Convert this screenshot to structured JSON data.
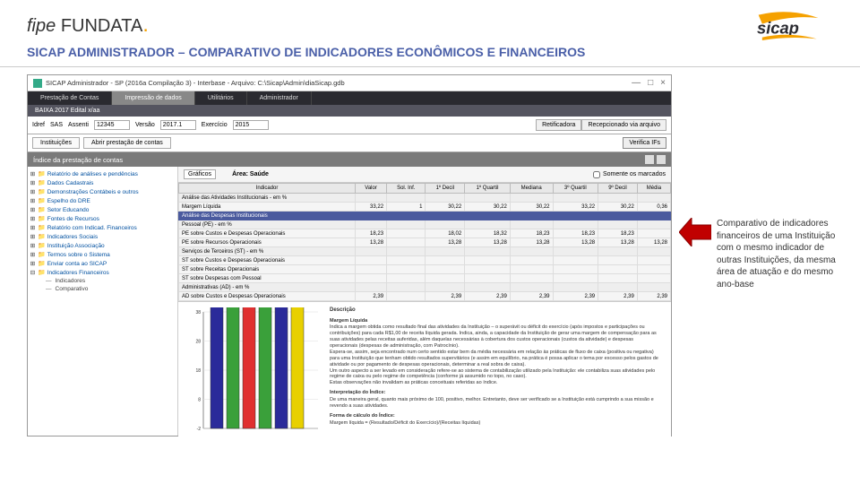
{
  "header": {
    "logo_fipe": "fipe",
    "logo_fundata": "FUNDATA",
    "logo_right": "sicap"
  },
  "page_title": "SICAP ADMINISTRADOR – COMPARATIVO DE INDICADORES ECONÔMICOS E FINANCEIROS",
  "window": {
    "title": "SICAP Administrador - SP (2016a Compilação 3) - Interbase - Arquivo: C:\\Sicap\\Admin\\diaSicap.gdb",
    "minimize": "—",
    "maximize": "□",
    "close": "×"
  },
  "menubar": {
    "items": [
      "Prestação de Contas",
      "Impressão de dados",
      "Utilitários",
      "Administrador"
    ]
  },
  "toolbar1": "BAIXA 2017 Edital x/aa",
  "toolbar2": {
    "idref": "Idref",
    "sas": "SAS",
    "assent": "Assenti",
    "assent_val": "12345",
    "versao": "Versão",
    "versao_val": "2017.1",
    "exercicio": "Exercício",
    "exercicio_val": "2015",
    "tab_retificador": "Retificadora",
    "tab_recepciona": "Recepcionado via arquivo"
  },
  "toolbar3": {
    "tab1": "Instituições",
    "tab2": "Abrir prestação de contas",
    "verifica": "Verifica IFs"
  },
  "section": {
    "title": "Índice da prestação de contas",
    "somente": "Somente os marcados"
  },
  "subtabs": {
    "tab1": "Gráficos",
    "area": "Área: Saúde"
  },
  "tree": [
    "Relatório de análises e pendências",
    "Dados Cadastrais",
    "Demonstrações Contábeis e outros",
    "Espelho do DRE",
    "Setor Educando",
    "Fontes de Recursos",
    "Relatório com Indicad. Financeiros",
    "Indicadores Sociais",
    "Instituição Associação",
    "Termos sobre o Sistema",
    "Enviar conta ao SICAP",
    "Indicadores Financeiros"
  ],
  "tree_sub": [
    "Indicadores",
    "Comparativo"
  ],
  "table": {
    "headers": [
      "Indicador",
      "Valor",
      "Sol. Inf.",
      "1º Decil",
      "1º Quartil",
      "Mediana",
      "3º Quartil",
      "9º Decil",
      "Média"
    ],
    "rows": [
      {
        "label": "Análise das Atividades Institucionais - em %",
        "vals": [
          "",
          "",
          "",
          "",
          "",
          "",
          "",
          ""
        ],
        "cls": "row-grey"
      },
      {
        "label": "Margem Líquida",
        "vals": [
          "33,22",
          "1",
          "30,22",
          "30,22",
          "30,22",
          "33,22",
          "30,22",
          "0,36"
        ],
        "cls": ""
      },
      {
        "label": "Análise das Despesas Institucionais",
        "vals": [
          "",
          "",
          "",
          "",
          "",
          "",
          "",
          ""
        ],
        "cls": "row-hl"
      },
      {
        "label": "Pessoal (PE) - em %",
        "vals": [
          "",
          "",
          "",
          "",
          "",
          "",
          "",
          ""
        ],
        "cls": "row-grey"
      },
      {
        "label": "PE sobre Custos e Despesas Operacionais",
        "vals": [
          "18,23",
          "",
          "18,02",
          "18,32",
          "18,23",
          "18,23",
          "18,23",
          ""
        ],
        "cls": ""
      },
      {
        "label": "PE sobre Recursos Operacionais",
        "vals": [
          "13,28",
          "",
          "13,28",
          "13,28",
          "13,28",
          "13,28",
          "13,28",
          "13,28"
        ],
        "cls": ""
      },
      {
        "label": "Serviços de Terceiros (ST) - em %",
        "vals": [
          "",
          "",
          "",
          "",
          "",
          "",
          "",
          ""
        ],
        "cls": "row-grey"
      },
      {
        "label": "ST sobre Custos e Despesas Operacionais",
        "vals": [
          "",
          "",
          "",
          "",
          "",
          "",
          "",
          ""
        ],
        "cls": ""
      },
      {
        "label": "ST sobre Receitas Operacionais",
        "vals": [
          "",
          "",
          "",
          "",
          "",
          "",
          "",
          ""
        ],
        "cls": ""
      },
      {
        "label": "ST sobre Despesas com Pessoal",
        "vals": [
          "",
          "",
          "",
          "",
          "",
          "",
          "",
          ""
        ],
        "cls": ""
      },
      {
        "label": "Administrativas (AD) - em %",
        "vals": [
          "",
          "",
          "",
          "",
          "",
          "",
          "",
          ""
        ],
        "cls": "row-grey"
      },
      {
        "label": "AD sobre Custos e Despesas Operacionais",
        "vals": [
          "2,39",
          "",
          "2,39",
          "2,39",
          "2,39",
          "2,39",
          "2,39",
          "2,39"
        ],
        "cls": ""
      }
    ]
  },
  "chart": {
    "y_ticks": [
      "38",
      "28",
      "18",
      "8",
      "-2"
    ],
    "bars": [
      {
        "color": "#2a2a9a",
        "h": 68
      },
      {
        "color": "#3aa03a",
        "h": 72
      },
      {
        "color": "#e03030",
        "h": 72
      },
      {
        "color": "#3aa03a",
        "h": 74
      },
      {
        "color": "#2a2a9a",
        "h": 74
      },
      {
        "color": "#e8d000",
        "h": 72
      }
    ]
  },
  "description": {
    "title": "Descrição",
    "sub1": "Margem Líquida",
    "text1": "Indica a margem obtida como resultado final das atividades da Instituição – o superávit ou déficit do exercício (após impostos e participações ou contribuições) para cada R$1,00 de receita líquida gerada. Indica, ainda, a capacidade da Instituição de gerar uma margem de compensação para as suas atividades pelas receitas auferidas, além daquelas necessárias à cobertura dos custos operacionais (custos da atividade) e despesas operacionais (despesas de administração, com Patrocínio).",
    "text2": "Espera-se, assim, seja encontrado num certo sentido estar bem da média necessária em relação às práticas de fluxo de caixa (positiva ou negativa) para uma Instituição que tenham obtido resultados supervitários (e assim em equilíbrio, na prática é possa aplicar o tema por excesso pelos gastos de atividade ou por pagamento de despesas operacionais, determinar a real sobra de caixa).",
    "text3": "Um outro aspecto a ser levado em consideração refere-se ao sistema de contabilização utilizado pela Instituição: ele contabiliza suas atividades pelo regime de caixa ou pelo regime de competência (conforme já assumido no topo, no caso).",
    "text4": "Estas observações não invalidam as práticas conceituais referidas ao índice.",
    "sub2": "Interpretação do Índice:",
    "text5": "De uma maneira geral, quanto mais próximo de 100, positivo, melhor. Entretanto, deve ser verificado se a Instituição está cumprindo a sua missão e revendo a suas atividades.",
    "sub3": "Forma de cálculo do Índice:",
    "text6": "Margem líquida = (Resultado/Déficit do Exercício)/(Receitas líquidas)"
  },
  "annotation": {
    "text": "Comparativo de indicadores financeiros de uma Instituição com o mesmo indicador de outras Instituições, da mesma área de atuação e do mesmo ano-base"
  }
}
